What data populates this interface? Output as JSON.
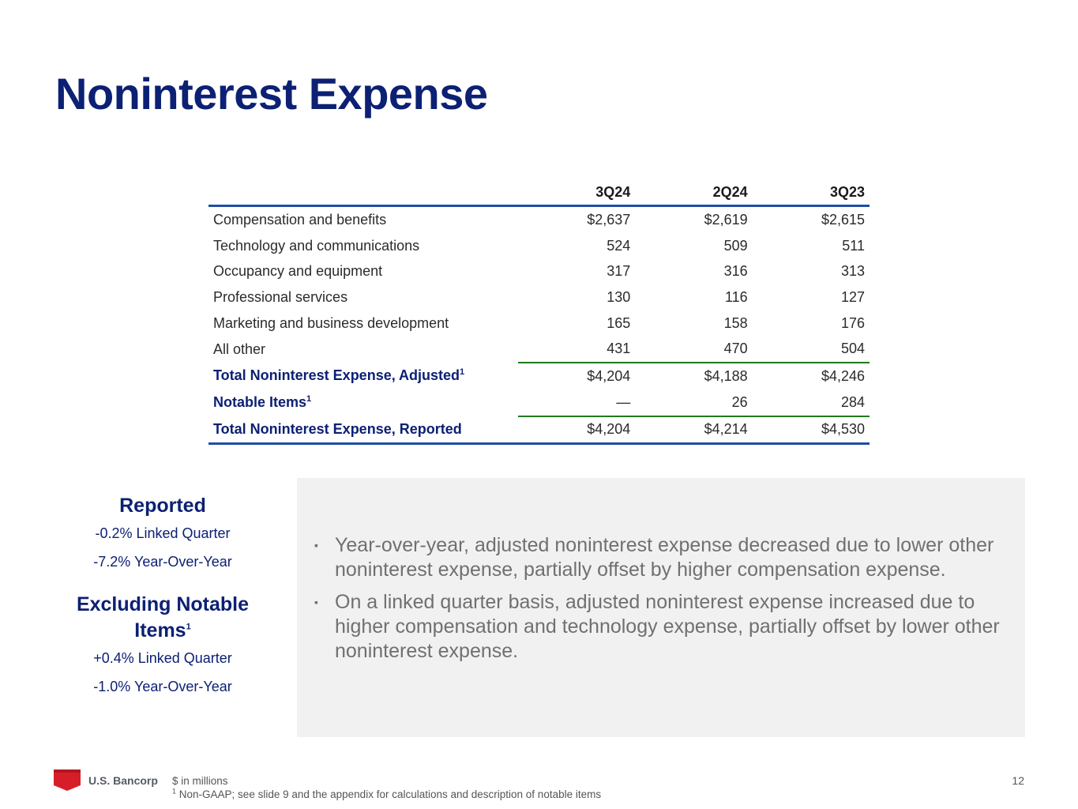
{
  "title": "Noninterest Expense",
  "table": {
    "columns": [
      "3Q24",
      "2Q24",
      "3Q23"
    ],
    "rows": [
      {
        "label": "Compensation and benefits",
        "sup": "",
        "values": [
          "$2,637",
          "$2,619",
          "$2,615"
        ]
      },
      {
        "label": "Technology and communications",
        "sup": "",
        "values": [
          "524",
          "509",
          "511"
        ]
      },
      {
        "label": "Occupancy and equipment",
        "sup": "",
        "values": [
          "317",
          "316",
          "313"
        ]
      },
      {
        "label": "Professional services",
        "sup": "",
        "values": [
          "130",
          "116",
          "127"
        ]
      },
      {
        "label": "Marketing and business development",
        "sup": "",
        "values": [
          "165",
          "158",
          "176"
        ]
      },
      {
        "label": "All other",
        "sup": "",
        "values": [
          "431",
          "470",
          "504"
        ]
      },
      {
        "label": "Total Noninterest Expense, Adjusted",
        "sup": "1",
        "values": [
          "$4,204",
          "$4,188",
          "$4,246"
        ]
      },
      {
        "label": "Notable Items",
        "sup": "1",
        "values": [
          "—",
          "26",
          "284"
        ]
      },
      {
        "label": "Total Noninterest Expense, Reported",
        "sup": "",
        "values": [
          "$4,204",
          "$4,214",
          "$4,530"
        ]
      }
    ]
  },
  "metrics": {
    "reported": {
      "heading": "Reported",
      "lines": [
        "-0.2% Linked Quarter",
        "-7.2% Year-Over-Year"
      ]
    },
    "excluding": {
      "heading": "Excluding Notable Items",
      "sup": "1",
      "lines": [
        "+0.4% Linked Quarter",
        "-1.0% Year-Over-Year"
      ]
    }
  },
  "bullets": [
    "Year-over-year, adjusted noninterest expense decreased due to lower other noninterest expense, partially offset by higher compensation expense.",
    "On a linked quarter basis, adjusted noninterest expense increased due to higher compensation and technology expense, partially offset by lower other noninterest expense."
  ],
  "footer": {
    "logo_text": "U.S. Bancorp",
    "note1": "$ in millions",
    "note2_sup": "1",
    "note2": "Non-GAAP; see slide 9 and the appendix for calculations and description of notable items",
    "page_number": "12"
  },
  "colors": {
    "navy": "#0c2074",
    "rule_blue": "#1f4ea5",
    "rule_green": "#1f7a1f",
    "panel_gray": "#f1f1f1",
    "logo_red": "#d71e28"
  }
}
